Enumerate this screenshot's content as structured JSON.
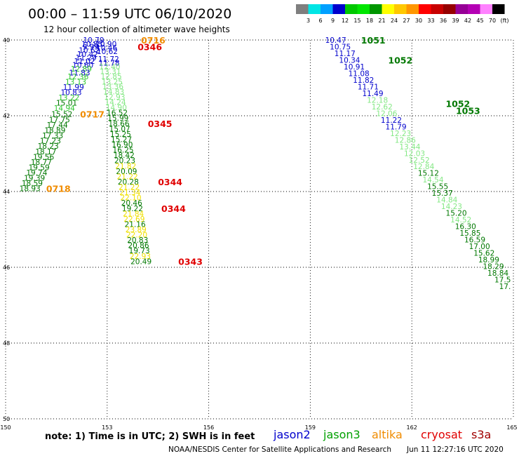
{
  "header": {
    "title": "00:00 – 11:59 UTC 06/10/2020",
    "subtitle": "12 hour collection of altimeter wave heights"
  },
  "colorbar": {
    "colors": [
      "#7f7f7f",
      "#00e5e5",
      "#00a0ff",
      "#0000cd",
      "#00c800",
      "#00e600",
      "#009600",
      "#ffff00",
      "#ffc800",
      "#ff9600",
      "#ff0000",
      "#c80000",
      "#960000",
      "#960096",
      "#b400b4",
      "#ff82ff",
      "#000000"
    ],
    "labels": [
      "3",
      "6",
      "9",
      "12",
      "15",
      "18",
      "21",
      "24",
      "27",
      "30",
      "33",
      "36",
      "39",
      "42",
      "45",
      "70",
      "(ft)"
    ]
  },
  "axes": {
    "lat_ticks": [
      "40",
      "42",
      "44",
      "46",
      "48",
      "50"
    ],
    "lon_ticks": [
      "150",
      "153",
      "156",
      "159",
      "162",
      "165"
    ]
  },
  "sat_colors": {
    "jason2": "#0000cc",
    "jason3": "#007800",
    "j3l": "#2ec82e",
    "j3vl": "#84e884",
    "altika": "#f08c00",
    "altika_y": "#f0e000",
    "cryosat": "#e00000",
    "s3a": "#a00000"
  },
  "footer": {
    "note": "note:  1) Time is in UTC;  2) SWH is in feet",
    "satellites": [
      {
        "name": "jason2",
        "color": "#0000cc"
      },
      {
        "name": "jason3",
        "color": "#00a000"
      },
      {
        "name": "altika",
        "color": "#f08c00"
      },
      {
        "name": "cryosat",
        "color": "#e00000"
      },
      {
        "name": "s3a",
        "color": "#a00000"
      }
    ],
    "credit": "NOAA/NESDIS Center for Satellite Applications and Research",
    "timestamp": "Jun 11 12:27:16 UTC 2020"
  },
  "map_data": {
    "type": "altimeter-swh-map",
    "lon_range": [
      150,
      165
    ],
    "lat_range": [
      40,
      50
    ],
    "track_a": [
      {
        "lat": 40.0,
        "swh": "10.79",
        "sat": "j2"
      },
      {
        "lat": 40.1,
        "swh": "10.85",
        "sat": "j2"
      },
      {
        "lat": 40.18,
        "swh": "9.99",
        "sat": "j2"
      },
      {
        "lat": 40.27,
        "swh": "10.62",
        "sat": "j2"
      },
      {
        "lat": 40.37,
        "swh": "10.42",
        "sat": "j2"
      },
      {
        "lat": 40.46,
        "swh": "11.29",
        "sat": "j2"
      },
      {
        "lat": 40.56,
        "swh": "11.02",
        "sat": "j2"
      },
      {
        "lat": 40.66,
        "swh": "10.60",
        "sat": "j2"
      },
      {
        "lat": 40.76,
        "swh": "12.89",
        "sat": "j3l"
      },
      {
        "lat": 40.86,
        "swh": "11.83",
        "sat": "j2"
      },
      {
        "lat": 40.96,
        "swh": "12.36",
        "sat": "j3l"
      },
      {
        "lat": 41.1,
        "swh": "13.13",
        "sat": "j3l"
      },
      {
        "lat": 41.24,
        "swh": "11.99",
        "sat": "j2"
      },
      {
        "lat": 41.38,
        "swh": "10.83",
        "sat": "j2"
      },
      {
        "lat": 41.52,
        "swh": "13.22",
        "sat": "j3l"
      },
      {
        "lat": 41.66,
        "swh": "15.01",
        "sat": "j3"
      },
      {
        "lat": 41.8,
        "swh": "14.94",
        "sat": "j3l"
      },
      {
        "lat": 41.95,
        "swh": "15.52",
        "sat": "j3"
      },
      {
        "lat": 42.1,
        "swh": "17.75",
        "sat": "j3"
      },
      {
        "lat": 42.24,
        "swh": "17.44",
        "sat": "j3"
      },
      {
        "lat": 42.38,
        "swh": "18.89",
        "sat": "j3"
      },
      {
        "lat": 42.52,
        "swh": "17.33",
        "sat": "j3"
      },
      {
        "lat": 42.66,
        "swh": "17.23",
        "sat": "j3"
      },
      {
        "lat": 42.8,
        "swh": "18.23",
        "sat": "j3"
      },
      {
        "lat": 42.94,
        "swh": "18.17",
        "sat": "j3"
      },
      {
        "lat": 43.08,
        "swh": "19.56",
        "sat": "j3"
      },
      {
        "lat": 43.22,
        "swh": "18.77",
        "sat": "j3"
      },
      {
        "lat": 43.36,
        "swh": "19.59",
        "sat": "j3"
      },
      {
        "lat": 43.5,
        "swh": "19.74",
        "sat": "j3"
      },
      {
        "lat": 43.64,
        "swh": "19.39",
        "sat": "j3"
      },
      {
        "lat": 43.78,
        "swh": "18.59",
        "sat": "j3"
      },
      {
        "lat": 43.92,
        "swh": "18.93",
        "sat": "j3"
      }
    ],
    "track_b": [
      {
        "lat": 40.1,
        "swh": "10.90",
        "sat": "j2"
      },
      {
        "lat": 40.2,
        "swh": "10.46",
        "sat": "j2"
      },
      {
        "lat": 40.3,
        "swh": "10.62",
        "sat": "j2"
      },
      {
        "lat": 40.5,
        "swh": "11.72",
        "sat": "j2"
      },
      {
        "lat": 40.6,
        "swh": "11.78",
        "sat": "j2"
      },
      {
        "lat": 40.7,
        "swh": "12.40",
        "sat": "j3vl"
      },
      {
        "lat": 40.82,
        "swh": "13.31",
        "sat": "j3vl"
      },
      {
        "lat": 40.95,
        "swh": "12.85",
        "sat": "j3vl"
      },
      {
        "lat": 41.1,
        "swh": "13.25",
        "sat": "j3vl"
      },
      {
        "lat": 41.22,
        "swh": "13.36",
        "sat": "j3vl"
      },
      {
        "lat": 41.36,
        "swh": "14.83",
        "sat": "j3vl"
      },
      {
        "lat": 41.5,
        "swh": "12.93",
        "sat": "j3vl"
      },
      {
        "lat": 41.64,
        "swh": "14.24",
        "sat": "j3vl"
      },
      {
        "lat": 41.78,
        "swh": "14.90",
        "sat": "j3vl"
      },
      {
        "lat": 41.92,
        "swh": "16.52",
        "sat": "j3"
      },
      {
        "lat": 42.06,
        "swh": "15.99",
        "sat": "j3"
      },
      {
        "lat": 42.2,
        "swh": "18.66",
        "sat": "j3"
      },
      {
        "lat": 42.34,
        "swh": "15.07",
        "sat": "j3"
      },
      {
        "lat": 42.48,
        "swh": "15.25",
        "sat": "j3"
      },
      {
        "lat": 42.62,
        "swh": "15.27",
        "sat": "j3"
      },
      {
        "lat": 42.76,
        "swh": "16.90",
        "sat": "j3"
      },
      {
        "lat": 42.9,
        "swh": "16.25",
        "sat": "j3"
      },
      {
        "lat": 43.04,
        "swh": "18.42",
        "sat": "j3"
      },
      {
        "lat": 43.18,
        "swh": "20.23",
        "sat": "j3"
      },
      {
        "lat": 43.32,
        "swh": "21.82",
        "sat": "ay"
      },
      {
        "lat": 43.46,
        "swh": "20.09",
        "sat": "j3"
      },
      {
        "lat": 43.6,
        "swh": "21.22",
        "sat": "ay"
      },
      {
        "lat": 43.74,
        "swh": "20.28",
        "sat": "j3"
      },
      {
        "lat": 43.88,
        "swh": "21.22",
        "sat": "ay"
      },
      {
        "lat": 44.02,
        "swh": "21.34",
        "sat": "ay"
      },
      {
        "lat": 44.16,
        "swh": "22.10",
        "sat": "ay"
      },
      {
        "lat": 44.3,
        "swh": "20.46",
        "sat": "j3"
      },
      {
        "lat": 44.44,
        "swh": "19.22",
        "sat": "j3"
      },
      {
        "lat": 44.58,
        "swh": "21.84",
        "sat": "ay"
      },
      {
        "lat": 44.72,
        "swh": "22.69",
        "sat": "ay"
      },
      {
        "lat": 44.86,
        "swh": "21.16",
        "sat": "j3"
      },
      {
        "lat": 45.0,
        "swh": "23.89",
        "sat": "ay"
      },
      {
        "lat": 45.14,
        "swh": "22.20",
        "sat": "ay"
      },
      {
        "lat": 45.28,
        "swh": "20.83",
        "sat": "j3"
      },
      {
        "lat": 45.42,
        "swh": "20.86",
        "sat": "j3"
      },
      {
        "lat": 45.56,
        "swh": "19.73",
        "sat": "j3"
      },
      {
        "lat": 45.7,
        "swh": "22.93",
        "sat": "ay"
      },
      {
        "lat": 45.84,
        "swh": "20.49",
        "sat": "j3"
      }
    ],
    "track_c": [
      {
        "swh": "10.47",
        "sat": "j2"
      },
      {
        "swh": "10.75",
        "sat": "j2"
      },
      {
        "swh": "11.17",
        "sat": "j2"
      },
      {
        "swh": "10.34",
        "sat": "j2"
      },
      {
        "swh": "10.91",
        "sat": "j2"
      },
      {
        "swh": "11.08",
        "sat": "j2"
      },
      {
        "swh": "11.82",
        "sat": "j2"
      },
      {
        "swh": "11.71",
        "sat": "j2"
      },
      {
        "swh": "11.49",
        "sat": "j2"
      },
      {
        "swh": "12.18",
        "sat": "j3vl"
      },
      {
        "swh": "12.62",
        "sat": "j3vl"
      },
      {
        "swh": "12.06",
        "sat": "j3vl"
      },
      {
        "swh": "11.22",
        "sat": "j2"
      },
      {
        "swh": "11.79",
        "sat": "j2"
      },
      {
        "swh": "12.23",
        "sat": "j3vl"
      },
      {
        "swh": "12.86",
        "sat": "j3vl"
      },
      {
        "swh": "13.44",
        "sat": "j3vl"
      },
      {
        "swh": "12.03",
        "sat": "j3vl"
      },
      {
        "swh": "12.52",
        "sat": "j3vl"
      },
      {
        "swh": "12.84",
        "sat": "j3vl"
      },
      {
        "swh": "15.12",
        "sat": "j3"
      },
      {
        "swh": "14.54",
        "sat": "j3vl"
      },
      {
        "swh": "15.55",
        "sat": "j3"
      },
      {
        "swh": "15.37",
        "sat": "j3"
      },
      {
        "swh": "14.84",
        "sat": "j3vl"
      },
      {
        "swh": "14.23",
        "sat": "j3vl"
      },
      {
        "swh": "15.20",
        "sat": "j3"
      },
      {
        "swh": "14.52",
        "sat": "j3vl"
      },
      {
        "swh": "16.30",
        "sat": "j3"
      },
      {
        "swh": "15.85",
        "sat": "j3"
      },
      {
        "swh": "16.59",
        "sat": "j3"
      },
      {
        "swh": "17.00",
        "sat": "j3"
      },
      {
        "swh": "15.62",
        "sat": "j3"
      },
      {
        "swh": "18.99",
        "sat": "j3"
      },
      {
        "swh": "18.29",
        "sat": "j3"
      },
      {
        "swh": "18.84",
        "sat": "j3"
      },
      {
        "swh": "17.5",
        "sat": "j3"
      },
      {
        "swh": "17.",
        "sat": "j3"
      }
    ],
    "pass_times": [
      {
        "text": "0716",
        "sat": "altika",
        "lat": 40.0,
        "lon": 154.0
      },
      {
        "text": "0346",
        "sat": "cryosat",
        "lat": 40.18,
        "lon": 153.9
      },
      {
        "text": "0717",
        "sat": "altika",
        "lat": 41.95,
        "lon": 152.2
      },
      {
        "text": "0345",
        "sat": "cryosat",
        "lat": 42.2,
        "lon": 154.2
      },
      {
        "text": "0344",
        "sat": "cryosat",
        "lat": 43.74,
        "lon": 154.5
      },
      {
        "text": "0344",
        "sat": "cryosat",
        "lat": 44.44,
        "lon": 154.6
      },
      {
        "text": "0718",
        "sat": "altika",
        "lat": 43.92,
        "lon": 151.2
      },
      {
        "text": "0343",
        "sat": "cryosat",
        "lat": 45.84,
        "lon": 155.1
      },
      {
        "text": "1051",
        "sat": "jason3",
        "lat": 40.0,
        "lon": 160.5
      },
      {
        "text": "1052",
        "sat": "jason3",
        "lat": 40.53,
        "lon": 161.3
      },
      {
        "text": "1052",
        "sat": "jason3",
        "lat": 41.68,
        "lon": 163.0
      },
      {
        "text": "1053",
        "sat": "jason3",
        "lat": 41.86,
        "lon": 163.3
      }
    ]
  }
}
